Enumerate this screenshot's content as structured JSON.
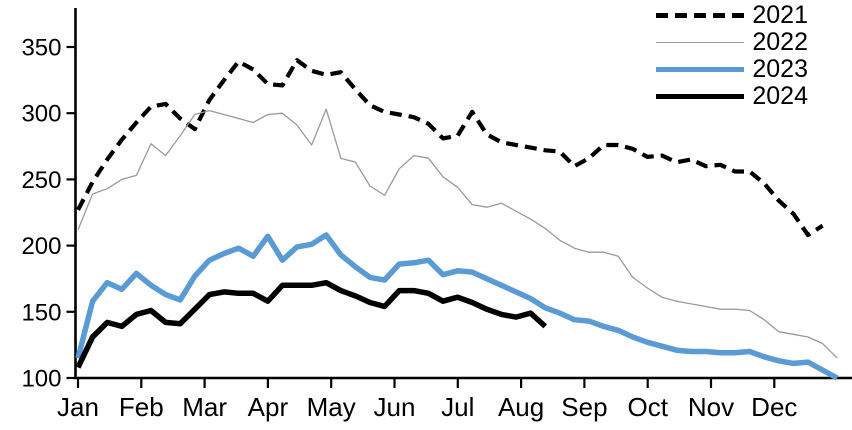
{
  "chart_data": {
    "type": "line",
    "title": "",
    "x_unit": "week",
    "x_axis": {
      "tick_labels": [
        "Jan",
        "Feb",
        "Mar",
        "Apr",
        "May",
        "Jun",
        "Jul",
        "Aug",
        "Sep",
        "Oct",
        "Nov",
        "Dec"
      ]
    },
    "y_axis": {
      "ticks": [
        100,
        150,
        200,
        250,
        300,
        350
      ],
      "ylim": [
        100,
        355
      ]
    },
    "grid": false,
    "legend_position": "top-right",
    "axis_color": "#000000",
    "series": [
      {
        "name": "2021",
        "color": "#000000",
        "line_style": "dashed",
        "stroke_width": 4.2,
        "values": [
          227,
          248,
          265,
          280,
          293,
          305,
          307,
          296,
          288,
          310,
          325,
          339,
          333,
          322,
          321,
          340,
          332,
          329,
          331,
          318,
          306,
          301,
          299,
          297,
          292,
          281,
          283,
          301,
          284,
          278,
          276,
          274,
          272,
          271,
          260,
          266,
          276,
          276,
          273,
          267,
          268,
          263,
          265,
          260,
          261,
          256,
          256,
          247,
          234,
          224,
          208,
          215
        ]
      },
      {
        "name": "2022",
        "color": "#9a9a9a",
        "line_style": "solid",
        "stroke_width": 1.3,
        "values": [
          212,
          239,
          243,
          250,
          253,
          277,
          268,
          283,
          299,
          302,
          299,
          296,
          293,
          299,
          300,
          291,
          276,
          303,
          266,
          263,
          245,
          238,
          258,
          268,
          266,
          252,
          244,
          231,
          229,
          232,
          226,
          220,
          213,
          204,
          198,
          195,
          195,
          192,
          176,
          168,
          161,
          158,
          156,
          154,
          152,
          152,
          151,
          144,
          135,
          133,
          131,
          126,
          115
        ]
      },
      {
        "name": "2023",
        "color": "#5b9bd5",
        "line_style": "solid",
        "stroke_width": 5.5,
        "values": [
          115,
          158,
          172,
          167,
          179,
          170,
          163,
          159,
          177,
          189,
          194,
          198,
          192,
          207,
          189,
          199,
          201,
          208,
          193,
          184,
          176,
          174,
          186,
          187,
          189,
          178,
          181,
          180,
          175,
          170,
          165,
          160,
          153,
          149,
          144,
          143,
          139,
          136,
          131,
          127,
          124,
          121,
          120,
          120,
          119,
          119,
          120,
          116,
          113,
          111,
          112,
          106,
          100
        ]
      },
      {
        "name": "2024",
        "color": "#000000",
        "line_style": "solid",
        "stroke_width": 5.5,
        "values": [
          108,
          131,
          142,
          139,
          148,
          151,
          142,
          141,
          152,
          163,
          165,
          164,
          164,
          158,
          170,
          170,
          170,
          172,
          166,
          162,
          157,
          154,
          166,
          166,
          164,
          158,
          161,
          157,
          152,
          148,
          146,
          149,
          139
        ]
      }
    ]
  }
}
